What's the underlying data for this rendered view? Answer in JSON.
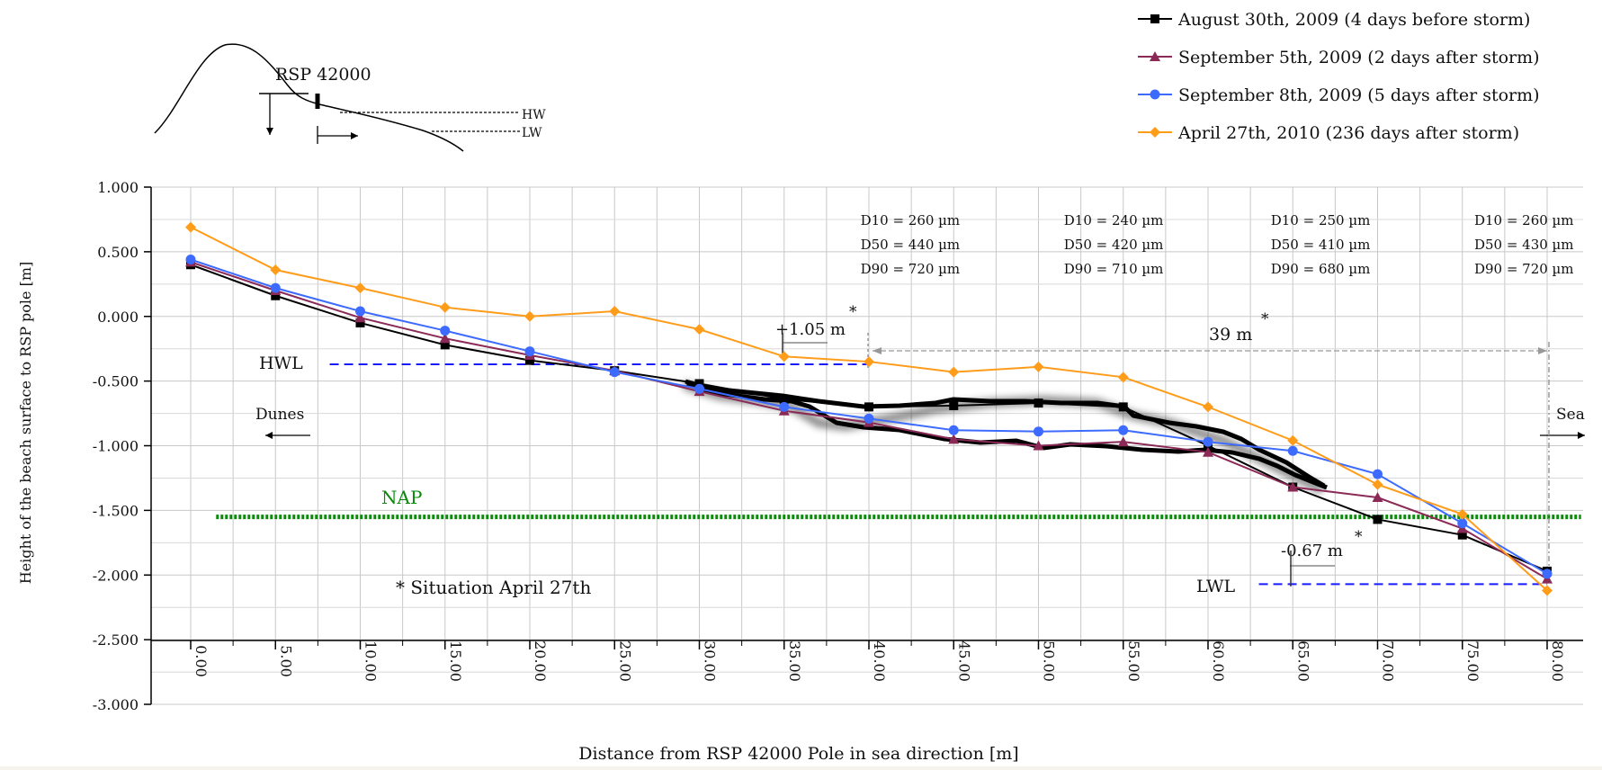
{
  "chart_data": {
    "type": "line",
    "xlabel": "Distance from RSP 42000 Pole in sea direction [m]",
    "ylabel": "Height of the beach surface to RSP pole [m]",
    "xlim": [
      0,
      82
    ],
    "ylim": [
      -3.0,
      1.0
    ],
    "grid": true,
    "legend_position": "top-right",
    "x_ticks": [
      "0.00",
      "5.00",
      "10.00",
      "15.00",
      "20.00",
      "25.00",
      "30.00",
      "35.00",
      "40.00",
      "45.00",
      "50.00",
      "55.00",
      "60.00",
      "65.00",
      "70.00",
      "75.00",
      "80.00"
    ],
    "y_ticks": [
      "1.000",
      "0.500",
      "0.000",
      "-0.500",
      "-1.000",
      "-1.500",
      "-2.000",
      "-2.500",
      "-3.000"
    ],
    "series": [
      {
        "name": "August 30th, 2009 (4 days before storm)",
        "color": "#000000",
        "marker": "square",
        "x": [
          0,
          5,
          10,
          15,
          20,
          25,
          30,
          35,
          40,
          45,
          50,
          55,
          60,
          65,
          70,
          75,
          80
        ],
        "y": [
          0.4,
          0.16,
          -0.05,
          -0.22,
          -0.34,
          -0.42,
          -0.52,
          -0.64,
          -0.7,
          -0.69,
          -0.67,
          -0.7,
          -1.0,
          -1.32,
          -1.57,
          -1.69,
          -1.97
        ]
      },
      {
        "name": "September 5th, 2009 (2 days after storm)",
        "color": "#8b2a56",
        "marker": "triangle",
        "x": [
          0,
          5,
          10,
          15,
          20,
          25,
          30,
          35,
          40,
          45,
          50,
          55,
          60,
          65,
          70,
          75,
          80
        ],
        "y": [
          0.42,
          0.2,
          -0.01,
          -0.17,
          -0.3,
          -0.42,
          -0.58,
          -0.73,
          -0.82,
          -0.95,
          -1.0,
          -0.97,
          -1.05,
          -1.32,
          -1.4,
          -1.64,
          -2.03
        ]
      },
      {
        "name": "September 8th, 2009 (5 days after storm)",
        "color": "#3d6bff",
        "marker": "circle",
        "x": [
          0,
          5,
          10,
          15,
          20,
          25,
          30,
          35,
          40,
          45,
          50,
          55,
          60,
          65,
          70,
          75,
          80
        ],
        "y": [
          0.44,
          0.22,
          0.04,
          -0.11,
          -0.27,
          -0.43,
          -0.56,
          -0.7,
          -0.79,
          -0.88,
          -0.89,
          -0.88,
          -0.97,
          -1.04,
          -1.22,
          -1.6,
          -1.99
        ]
      },
      {
        "name": "April 27th, 2010 (236 days after storm)",
        "color": "#ff9c1a",
        "marker": "diamond",
        "x": [
          0,
          5,
          10,
          15,
          20,
          25,
          30,
          35,
          40,
          45,
          50,
          55,
          60,
          65,
          70,
          75,
          80
        ],
        "y": [
          0.69,
          0.36,
          0.22,
          0.07,
          0.0,
          0.04,
          -0.1,
          -0.31,
          -0.35,
          -0.43,
          -0.39,
          -0.47,
          -0.7,
          -0.96,
          -1.3,
          -1.53,
          -2.12
        ]
      }
    ],
    "reference_lines": [
      {
        "label": "HWL",
        "y": -0.37,
        "x_from": 8.2,
        "x_to": 40,
        "color": "#1a1aff",
        "style": "dashed"
      },
      {
        "label": "LWL",
        "y": -2.07,
        "x_from": 63,
        "x_to": 80,
        "color": "#1a1aff",
        "style": "dashed"
      },
      {
        "label": "NAP",
        "y": -1.55,
        "x_from": 1.5,
        "x_to": 82,
        "color": "#0a8a0a",
        "style": "dotted"
      }
    ],
    "grain_sizes": [
      {
        "x": 39.5,
        "lines": [
          "D10 = 260 µm",
          "D50 = 440 µm",
          "D90 = 720 µm"
        ]
      },
      {
        "x": 51.5,
        "lines": [
          "D10 = 240 µm",
          "D50 = 420 µm",
          "D90 = 710 µm"
        ]
      },
      {
        "x": 63.7,
        "lines": [
          "D10 = 250 µm",
          "D50 = 410 µm",
          "D90 = 680 µm"
        ]
      },
      {
        "x": 75.7,
        "lines": [
          "D10 = 260 µm",
          "D50 = 430 µm",
          "D90 = 720 µm"
        ]
      }
    ],
    "annotations": {
      "plus_105": "+1.05 m",
      "width_39": "39 m",
      "minus_067": "-0.67 m",
      "star": "*",
      "situation": "* Situation April 27th",
      "dunes": "Dunes",
      "sea": "Sea"
    },
    "inset": {
      "label": "RSP 42000",
      "hw": "HW",
      "lw": "LW"
    }
  }
}
